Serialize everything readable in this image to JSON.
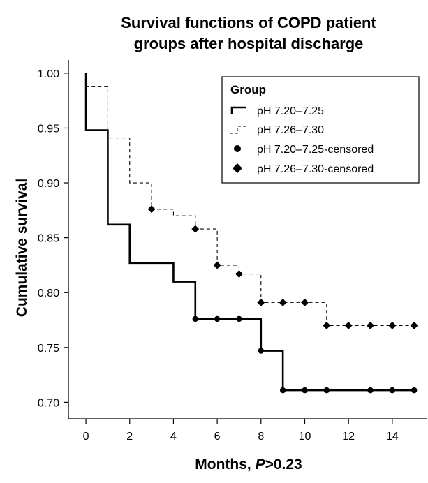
{
  "chart_data": {
    "type": "line",
    "subtype": "step-survival",
    "title_lines": [
      "Survival functions of COPD patient",
      "groups after hospital discharge"
    ],
    "xlabel_prefix": "Months, ",
    "xlabel_p": "P",
    "xlabel_suffix": ">0.23",
    "ylabel": "Cumulative survival",
    "xlim": [
      -0.8,
      15.6
    ],
    "ylim": [
      0.685,
      1.012
    ],
    "x_ticks": [
      0,
      2,
      4,
      6,
      8,
      10,
      12,
      14
    ],
    "x_tick_labels": [
      "0",
      "2",
      "4",
      "6",
      "8",
      "10",
      "12",
      "14"
    ],
    "y_ticks": [
      0.7,
      0.75,
      0.8,
      0.85,
      0.9,
      0.95,
      1.0
    ],
    "y_tick_labels": [
      "0.70",
      "0.75",
      "0.80",
      "0.85",
      "0.90",
      "0.95",
      "1.00"
    ],
    "grid": false,
    "legend": {
      "position": "top-right",
      "title": "Group",
      "entries": [
        "pH 7.20–7.25",
        "pH 7.26–7.30",
        "pH 7.20–7.25-censored",
        "pH 7.26–7.30-censored"
      ]
    },
    "series": [
      {
        "name": "pH 7.20–7.25",
        "line_style": "solid",
        "color": "#000000",
        "steps": [
          [
            0,
            1.0
          ],
          [
            0,
            0.948
          ],
          [
            1,
            0.862
          ],
          [
            2,
            0.827
          ],
          [
            4,
            0.81
          ],
          [
            5,
            0.776
          ],
          [
            8,
            0.747
          ],
          [
            9,
            0.711
          ],
          [
            15,
            0.711
          ]
        ],
        "censored_marker": "circle",
        "censored": [
          [
            5,
            0.776
          ],
          [
            6,
            0.776
          ],
          [
            7,
            0.776
          ],
          [
            8,
            0.747
          ],
          [
            9,
            0.711
          ],
          [
            10,
            0.711
          ],
          [
            11,
            0.711
          ],
          [
            13,
            0.711
          ],
          [
            14,
            0.711
          ],
          [
            15,
            0.711
          ]
        ]
      },
      {
        "name": "pH 7.26–7.30",
        "line_style": "dashed",
        "color": "#000000",
        "steps": [
          [
            0,
            1.0
          ],
          [
            0,
            0.988
          ],
          [
            1,
            0.941
          ],
          [
            2,
            0.9
          ],
          [
            3,
            0.876
          ],
          [
            4,
            0.87
          ],
          [
            5,
            0.858
          ],
          [
            6,
            0.825
          ],
          [
            7,
            0.817
          ],
          [
            8,
            0.791
          ],
          [
            11,
            0.77
          ],
          [
            15,
            0.77
          ]
        ],
        "censored_marker": "diamond",
        "censored": [
          [
            3,
            0.876
          ],
          [
            5,
            0.858
          ],
          [
            6,
            0.825
          ],
          [
            7,
            0.817
          ],
          [
            8,
            0.791
          ],
          [
            9,
            0.791
          ],
          [
            10,
            0.791
          ],
          [
            11,
            0.77
          ],
          [
            12,
            0.77
          ],
          [
            13,
            0.77
          ],
          [
            14,
            0.77
          ],
          [
            15,
            0.77
          ]
        ]
      }
    ]
  }
}
